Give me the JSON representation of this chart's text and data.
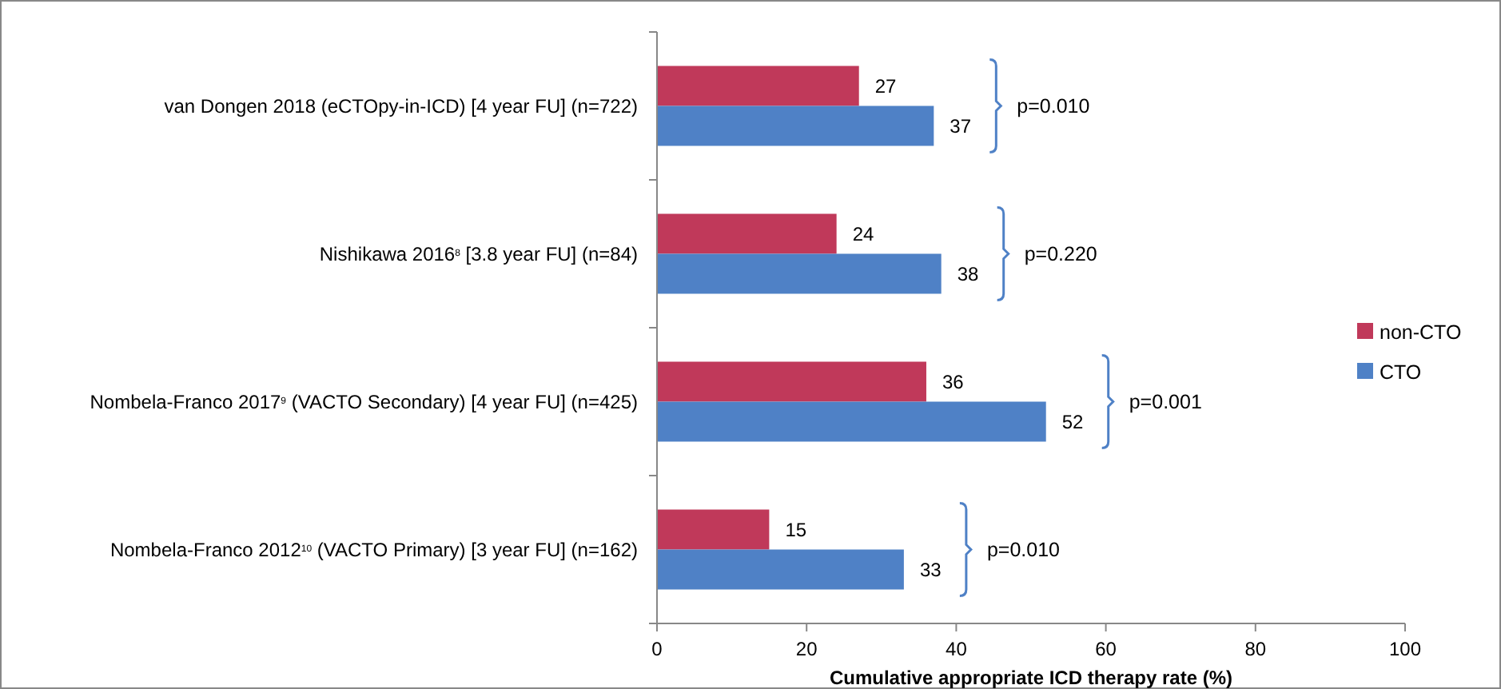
{
  "chart_data": {
    "type": "bar",
    "orientation": "horizontal",
    "categories": [
      "van Dongen 2018 (eCTOpy-in-ICD) [4 year FU] (n=722)",
      "Nishikawa 2016$^{8}$ [3.8 year FU] (n=84)",
      "Nombela-Franco 2017$^{9}$ (VACTO Secondary) [4 year FU] (n=425)",
      "Nombela-Franco 2012$^{10}$ (VACTO Primary) [3 year FU] (n=162)"
    ],
    "series": [
      {
        "name": "non-CTO",
        "color": "#c0395a",
        "values": [
          27,
          24,
          36,
          15
        ]
      },
      {
        "name": "CTO",
        "color": "#4f81c6",
        "values": [
          37,
          38,
          52,
          33
        ]
      }
    ],
    "xlim": [
      0,
      100
    ],
    "xticks": [
      0,
      20,
      40,
      60,
      80,
      100
    ],
    "xlabel": "Cumulative appropriate ICD therapy rate (%)",
    "data_labels": true,
    "legend": "right",
    "grid": false,
    "annotations": [
      "p=0.010",
      "p=0.220",
      "p=0.001",
      "p=0.010"
    ]
  }
}
